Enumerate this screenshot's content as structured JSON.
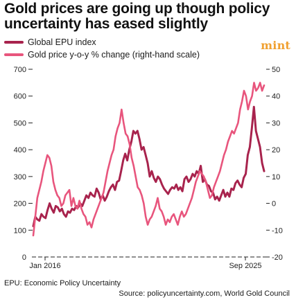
{
  "title": "Gold prices are going up though policy uncertainty has eased slightly",
  "logo": "mint",
  "footnote": "EPU: Economic Policy Uncertainty",
  "source": "Source: policyuncertainty.com, World Gold Council",
  "colors": {
    "epu": "#a8234d",
    "gold": "#e8557d"
  },
  "chart_data": {
    "type": "line",
    "x_ticks": [
      "Jan 2016",
      "Sep 2025"
    ],
    "left_axis": {
      "ticks": [
        0,
        100,
        200,
        300,
        400,
        500,
        600,
        700
      ],
      "ylim": [
        0,
        700
      ]
    },
    "right_axis": {
      "ticks": [
        -20,
        -10,
        0,
        10,
        20,
        30,
        40,
        50
      ],
      "ylim": [
        -20,
        50
      ]
    },
    "grid": false,
    "legend_position": "top-left",
    "series": [
      {
        "name": "Global EPU index",
        "axis": "left",
        "values": [
          115,
          150,
          140,
          135,
          160,
          150,
          145,
          175,
          200,
          180,
          165,
          190,
          185,
          170,
          180,
          160,
          150,
          170,
          165,
          180,
          175,
          190,
          185,
          200,
          190,
          210,
          230,
          220,
          240,
          230,
          225,
          255,
          240,
          215,
          230,
          210,
          225,
          245,
          260,
          270,
          250,
          280,
          285,
          320,
          360,
          385,
          360,
          400,
          430,
          470,
          460,
          470,
          440,
          400,
          410,
          380,
          350,
          300,
          320,
          295,
          280,
          300,
          290,
          270,
          255,
          245,
          235,
          250,
          260,
          255,
          270,
          250,
          260,
          245,
          290,
          300,
          280,
          290,
          310,
          300,
          320,
          310,
          340,
          280,
          290,
          270,
          265,
          245,
          240,
          215,
          225,
          210,
          230,
          250,
          225,
          240,
          225,
          255,
          250,
          275,
          285,
          270,
          260,
          295,
          310,
          380,
          410,
          480,
          560,
          470,
          440,
          410,
          350,
          320
        ]
      },
      {
        "name": "Gold price y-o-y % change (right-hand scale)",
        "axis": "right",
        "values": [
          -12,
          -5,
          2,
          5,
          8,
          12,
          15,
          18,
          17,
          14,
          8,
          5,
          3,
          2,
          -1,
          0,
          3,
          4,
          5,
          -1,
          2,
          -1,
          -2,
          1,
          -2,
          -4,
          -5,
          -8,
          -7,
          -9,
          -6,
          -4,
          -2,
          0,
          2,
          4,
          8,
          12,
          15,
          18,
          20,
          25,
          28,
          30,
          35,
          30,
          26,
          25,
          22,
          17,
          14,
          10,
          6,
          5,
          3,
          0,
          -5,
          -8,
          -6,
          -5,
          -3,
          -1,
          2,
          -2,
          -3,
          -5,
          -8,
          -6,
          -7,
          -5,
          -4,
          -6,
          -8,
          -5,
          -3,
          -5,
          -4,
          -2,
          0,
          2,
          5,
          8,
          10,
          12,
          11,
          10,
          8,
          5,
          2,
          3,
          6,
          8,
          10,
          12,
          15,
          18,
          20,
          23,
          25,
          27,
          26,
          28,
          30,
          35,
          38,
          42,
          40,
          35,
          38,
          40,
          45,
          42,
          43,
          45,
          42,
          44
        ]
      }
    ]
  }
}
